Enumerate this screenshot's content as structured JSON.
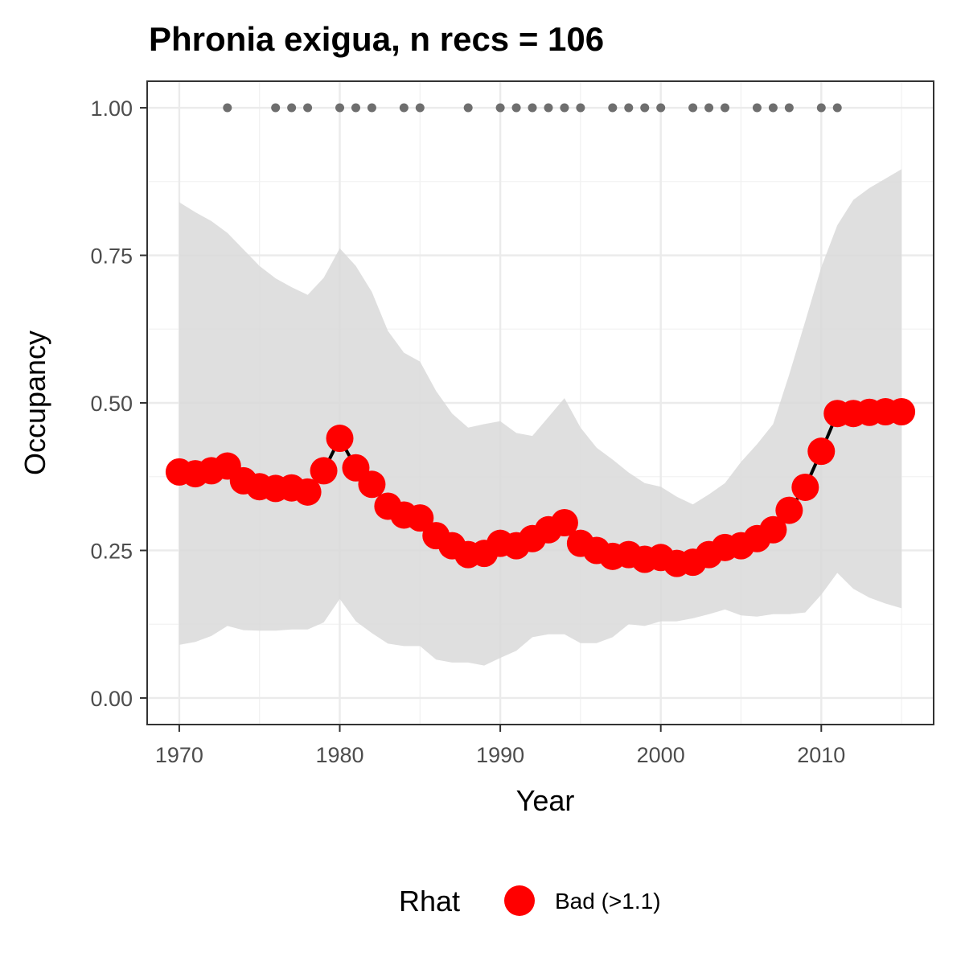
{
  "chart_data": {
    "type": "line",
    "title": "Phronia exigua, n recs = 106",
    "xlabel": "Year",
    "ylabel": "Occupancy",
    "xlim": [
      1968,
      2017
    ],
    "ylim": [
      -0.045,
      1.045
    ],
    "x_ticks": [
      1970,
      1980,
      1990,
      2000,
      2010
    ],
    "x_tick_labels": [
      "1970",
      "1980",
      "1990",
      "2000",
      "2010"
    ],
    "y_ticks": [
      0,
      0.25,
      0.5,
      0.75,
      1
    ],
    "y_tick_labels": [
      "0.00",
      "0.25",
      "0.50",
      "0.75",
      "1.00"
    ],
    "grid": true,
    "legend": {
      "title": "Rhat",
      "placement": "bottom",
      "entries": [
        {
          "label": "Bad (>1.1)",
          "color": "#ff0000"
        }
      ]
    },
    "colors": {
      "ribbon": "#d9d9d9",
      "line": "#000000",
      "points": "#ff0000",
      "record_markers": "#6e6e6e",
      "grid_major": "#ebebeb",
      "panel_border": "#333333"
    },
    "series": [
      {
        "x": [
          1970,
          1971,
          1972,
          1973,
          1974,
          1975,
          1976,
          1977,
          1978,
          1979,
          1980,
          1981,
          1982,
          1983,
          1984,
          1985,
          1986,
          1987,
          1988,
          1989,
          1990,
          1991,
          1992,
          1993,
          1994,
          1995,
          1996,
          1997,
          1998,
          1999,
          2000,
          2001,
          2002,
          2003,
          2004,
          2005,
          2006,
          2007,
          2008,
          2009,
          2010,
          2011,
          2012,
          2013,
          2014,
          2015
        ],
        "y": [
          0.383,
          0.38,
          0.385,
          0.393,
          0.368,
          0.358,
          0.355,
          0.356,
          0.349,
          0.385,
          0.44,
          0.39,
          0.362,
          0.325,
          0.31,
          0.305,
          0.275,
          0.258,
          0.243,
          0.245,
          0.262,
          0.258,
          0.27,
          0.285,
          0.297,
          0.262,
          0.25,
          0.24,
          0.243,
          0.235,
          0.238,
          0.228,
          0.23,
          0.243,
          0.255,
          0.258,
          0.27,
          0.285,
          0.318,
          0.357,
          0.418,
          0.482,
          0.482,
          0.484,
          0.485,
          0.485
        ],
        "lower": [
          0.09,
          0.095,
          0.105,
          0.122,
          0.115,
          0.114,
          0.114,
          0.116,
          0.116,
          0.128,
          0.168,
          0.13,
          0.11,
          0.092,
          0.088,
          0.088,
          0.065,
          0.06,
          0.06,
          0.055,
          0.068,
          0.08,
          0.103,
          0.108,
          0.108,
          0.093,
          0.093,
          0.103,
          0.125,
          0.122,
          0.13,
          0.13,
          0.135,
          0.142,
          0.15,
          0.14,
          0.138,
          0.142,
          0.142,
          0.145,
          0.175,
          0.212,
          0.185,
          0.17,
          0.16,
          0.152
        ],
        "upper": [
          0.84,
          0.823,
          0.808,
          0.788,
          0.76,
          0.732,
          0.711,
          0.696,
          0.683,
          0.712,
          0.762,
          0.732,
          0.688,
          0.622,
          0.585,
          0.57,
          0.52,
          0.482,
          0.458,
          0.464,
          0.469,
          0.449,
          0.444,
          0.476,
          0.508,
          0.458,
          0.424,
          0.404,
          0.382,
          0.364,
          0.358,
          0.341,
          0.328,
          0.345,
          0.364,
          0.4,
          0.43,
          0.464,
          0.548,
          0.638,
          0.73,
          0.801,
          0.844,
          0.864,
          0.88,
          0.896
        ]
      }
    ],
    "record_years": [
      1973,
      1976,
      1977,
      1978,
      1980,
      1981,
      1982,
      1984,
      1985,
      1988,
      1990,
      1991,
      1992,
      1993,
      1994,
      1995,
      1997,
      1998,
      1999,
      2000,
      2002,
      2003,
      2004,
      2006,
      2007,
      2008,
      2010,
      2011
    ],
    "record_y": 1.0
  }
}
